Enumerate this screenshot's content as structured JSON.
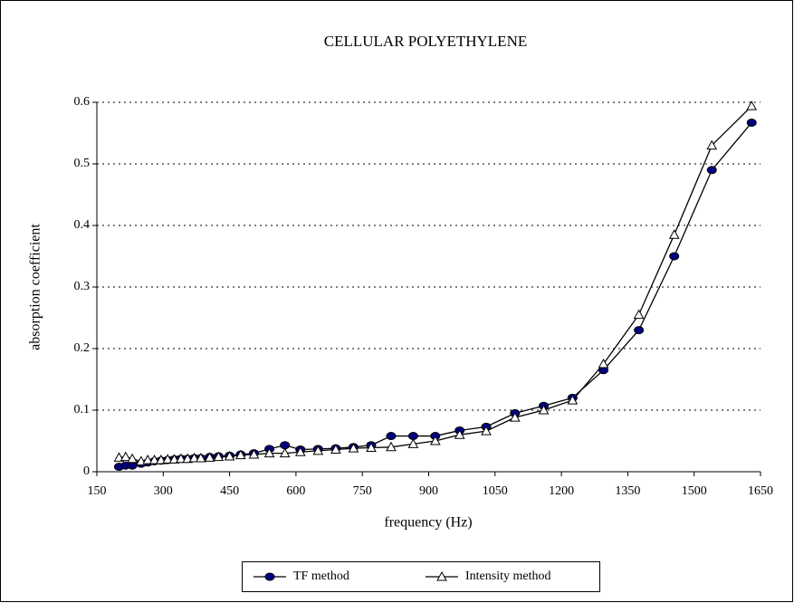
{
  "chart_data": {
    "type": "line",
    "title": "CELLULAR POLYETHYLENE",
    "x_label": "frequency (Hz)",
    "y_label": "absorption coefficient",
    "x": [
      200,
      215,
      230,
      250,
      265,
      280,
      295,
      310,
      325,
      340,
      355,
      370,
      385,
      405,
      425,
      450,
      475,
      505,
      540,
      575,
      610,
      650,
      690,
      730,
      770,
      815,
      865,
      915,
      970,
      1030,
      1095,
      1160,
      1225,
      1295,
      1375,
      1455,
      1540,
      1630
    ],
    "series": [
      {
        "name": "TF method",
        "color": "#000080",
        "marker": "circle",
        "values": [
          0.008,
          0.01,
          0.01,
          0.013,
          0.015,
          0.017,
          0.018,
          0.019,
          0.02,
          0.021,
          0.021,
          0.022,
          0.022,
          0.024,
          0.025,
          0.026,
          0.028,
          0.03,
          0.037,
          0.043,
          0.036,
          0.037,
          0.038,
          0.04,
          0.043,
          0.058,
          0.058,
          0.058,
          0.067,
          0.073,
          0.095,
          0.107,
          0.12,
          0.165,
          0.23,
          0.35,
          0.49,
          0.567
        ]
      },
      {
        "name": "Intensity method",
        "color": "#ffffff",
        "marker": "triangle",
        "values": [
          0.023,
          0.024,
          0.021,
          0.017,
          0.019,
          0.019,
          0.019,
          0.02,
          0.02,
          0.021,
          0.021,
          0.022,
          0.022,
          0.023,
          0.024,
          0.025,
          0.027,
          0.028,
          0.03,
          0.03,
          0.032,
          0.034,
          0.036,
          0.038,
          0.039,
          0.04,
          0.045,
          0.05,
          0.06,
          0.066,
          0.088,
          0.1,
          0.116,
          0.175,
          0.255,
          0.385,
          0.53,
          0.594
        ]
      }
    ],
    "xlim": [
      150,
      1650
    ],
    "xticks": [
      150,
      300,
      450,
      600,
      750,
      900,
      1050,
      1200,
      1350,
      1500,
      1650
    ],
    "ylim": [
      0,
      0.6
    ],
    "yticks": [
      0,
      0.1,
      0.2,
      0.3,
      0.4,
      0.5,
      0.6
    ],
    "grid": true,
    "legend": "bottom"
  }
}
